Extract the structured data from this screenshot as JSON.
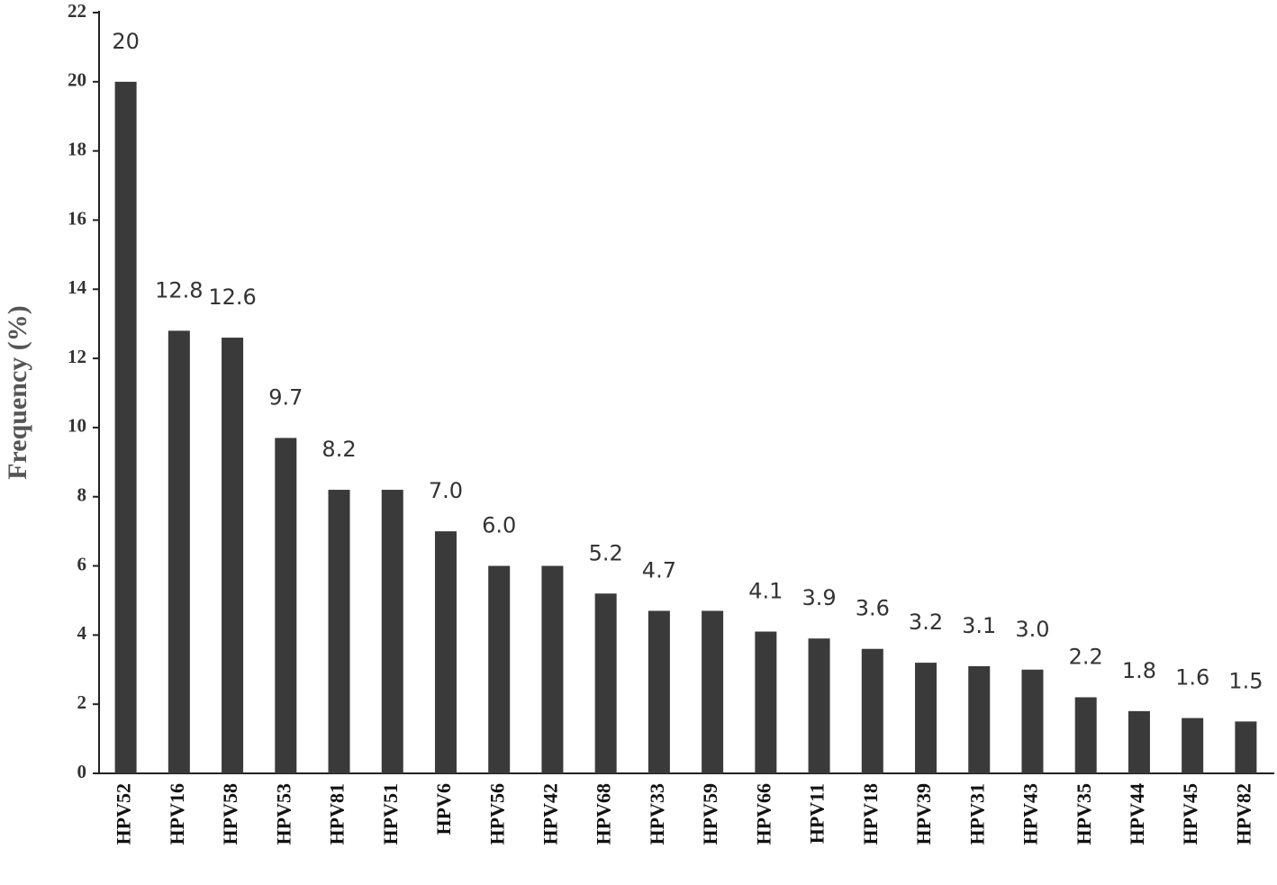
{
  "chart_data": {
    "type": "bar",
    "y_label": "Frequency (%)",
    "categories": [
      "HPV52",
      "HPV16",
      "HPV58",
      "HPV53",
      "HPV81",
      "HPV51",
      "HPV6",
      "HPV56",
      "HPV42",
      "HPV68",
      "HPV33",
      "HPV59",
      "HPV66",
      "HPV11",
      "HPV18",
      "HPV39",
      "HPV31",
      "HPV43",
      "HPV35",
      "HPV44",
      "HPV45",
      "HPV82"
    ],
    "values": [
      20,
      12.8,
      12.6,
      9.7,
      8.2,
      8.2,
      7,
      6,
      6,
      5.2,
      4.7,
      4.7,
      4.1,
      3.9,
      3.6,
      3.2,
      3.1,
      3,
      2.2,
      1.8,
      1.6,
      1.5
    ],
    "value_labels": [
      "20",
      "12.8",
      "12.6",
      "9.7",
      "8.2",
      null,
      "7.0",
      "6.0",
      null,
      "5.2",
      "4.7",
      null,
      "4.1",
      "3.9",
      "3.6",
      "3.2",
      "3.1",
      "3.0",
      "2.2",
      "1.8",
      "1.6",
      "1.5"
    ],
    "color": "#3a3a3a",
    "ylim": [
      0,
      22
    ],
    "yticks": [
      0,
      2,
      4,
      6,
      8,
      10,
      12,
      14,
      16,
      18,
      20,
      22
    ],
    "grid": false
  }
}
